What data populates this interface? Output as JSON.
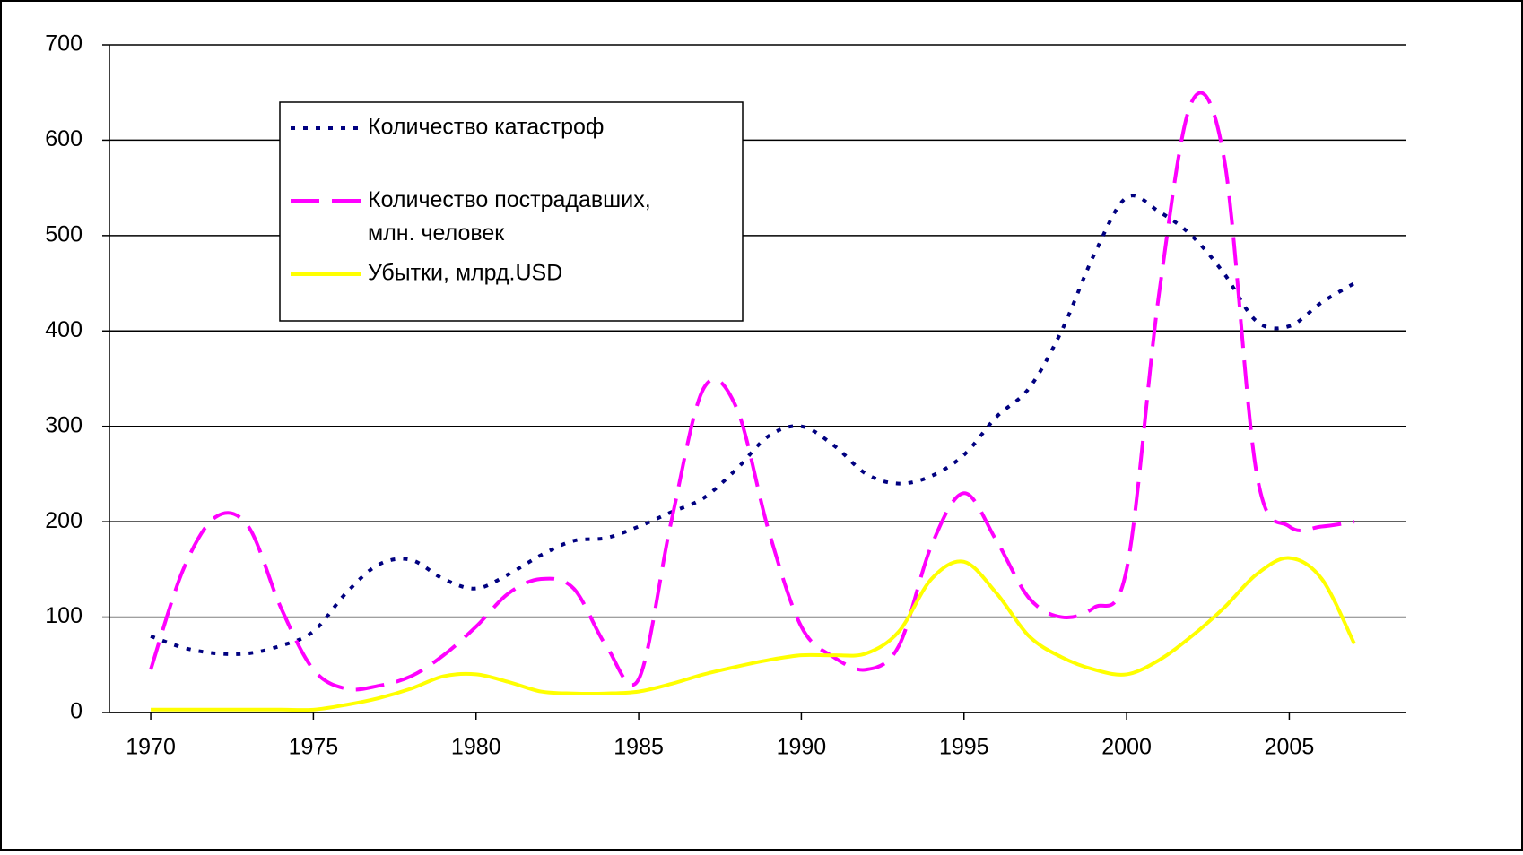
{
  "chart_data": {
    "type": "line",
    "x": [
      1970,
      1971,
      1972,
      1973,
      1974,
      1975,
      1976,
      1977,
      1978,
      1979,
      1980,
      1981,
      1982,
      1983,
      1984,
      1985,
      1986,
      1987,
      1988,
      1989,
      1990,
      1991,
      1992,
      1993,
      1994,
      1995,
      1996,
      1997,
      1998,
      1999,
      2000,
      2001,
      2002,
      2003,
      2004,
      2005,
      2006,
      2007
    ],
    "series": [
      {
        "name": "Количество катастроф",
        "color": "#000080",
        "dash": "dotted",
        "values": [
          80,
          68,
          62,
          62,
          70,
          85,
          125,
          155,
          160,
          140,
          130,
          145,
          165,
          180,
          183,
          195,
          210,
          225,
          255,
          290,
          300,
          280,
          250,
          240,
          248,
          270,
          310,
          340,
          400,
          480,
          540,
          525,
          500,
          460,
          410,
          405,
          430,
          450
        ]
      },
      {
        "name": "Количество пострадавших, млн. человек",
        "color": "#ff00ff",
        "dash": "dashed",
        "values": [
          45,
          150,
          205,
          195,
          110,
          45,
          25,
          28,
          38,
          60,
          90,
          125,
          140,
          130,
          70,
          35,
          200,
          340,
          320,
          190,
          90,
          58,
          45,
          70,
          175,
          230,
          180,
          120,
          100,
          110,
          150,
          440,
          640,
          580,
          250,
          195,
          195,
          200
        ]
      },
      {
        "name": "Убытки, млрд.USD",
        "color": "#ffff00",
        "dash": "solid",
        "values": [
          3,
          3,
          3,
          3,
          3,
          3,
          8,
          15,
          25,
          38,
          40,
          32,
          22,
          20,
          20,
          22,
          30,
          40,
          48,
          55,
          60,
          60,
          62,
          85,
          140,
          158,
          125,
          80,
          58,
          45,
          40,
          55,
          80,
          110,
          145,
          162,
          140,
          72
        ]
      }
    ],
    "xlim": [
      1968.73,
      2008.6
    ],
    "xticks": [
      1970,
      1975,
      1980,
      1985,
      1990,
      1995,
      2000,
      2005
    ],
    "ylim": [
      0,
      700
    ],
    "yticks": [
      0,
      100,
      200,
      300,
      400,
      500,
      600,
      700
    ],
    "grid": true
  }
}
